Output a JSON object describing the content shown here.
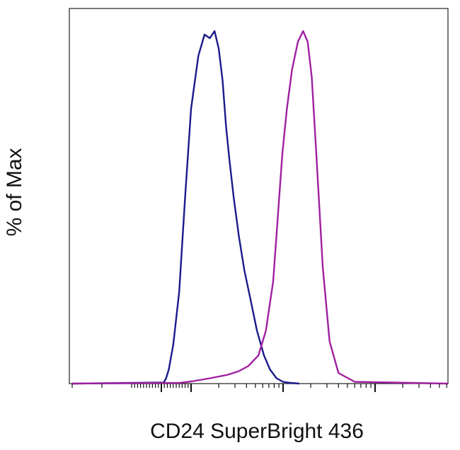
{
  "chart_data": {
    "type": "line",
    "title": "",
    "xlabel": "CD24 SuperBright 436",
    "ylabel": "% of Max",
    "x_scale": "log",
    "xlim": [
      -300,
      100000
    ],
    "ylim": [
      0,
      100
    ],
    "grid": false,
    "legend": "none",
    "series": [
      {
        "color": "#1a1a8c",
        "x": [
          -300,
          8,
          16,
          25,
          40,
          60,
          80,
          100,
          120,
          140,
          160,
          180,
          200,
          220,
          240,
          260,
          290,
          330,
          380,
          450,
          520,
          620,
          720,
          850,
          1000,
          1200,
          1500
        ],
        "y": [
          0,
          0.3,
          1.5,
          4,
          11,
          26,
          53,
          78,
          93,
          99,
          98,
          100,
          95,
          86,
          73,
          64,
          53,
          42,
          32,
          23,
          15,
          8,
          4,
          1.5,
          0.5,
          0.2,
          0
        ]
      },
      {
        "color": "#a020a0",
        "x": [
          -300,
          60,
          100,
          160,
          250,
          330,
          420,
          540,
          650,
          780,
          880,
          980,
          1100,
          1250,
          1450,
          1650,
          1850,
          2050,
          2300,
          2700,
          3200,
          4000,
          6000,
          100000
        ],
        "y": [
          0,
          0.2,
          0.6,
          1.5,
          2.5,
          3.5,
          5,
          8,
          15,
          29,
          48,
          65,
          78,
          89,
          97,
          100,
          97,
          87,
          65,
          33,
          12,
          3,
          0.5,
          0
        ]
      }
    ]
  }
}
